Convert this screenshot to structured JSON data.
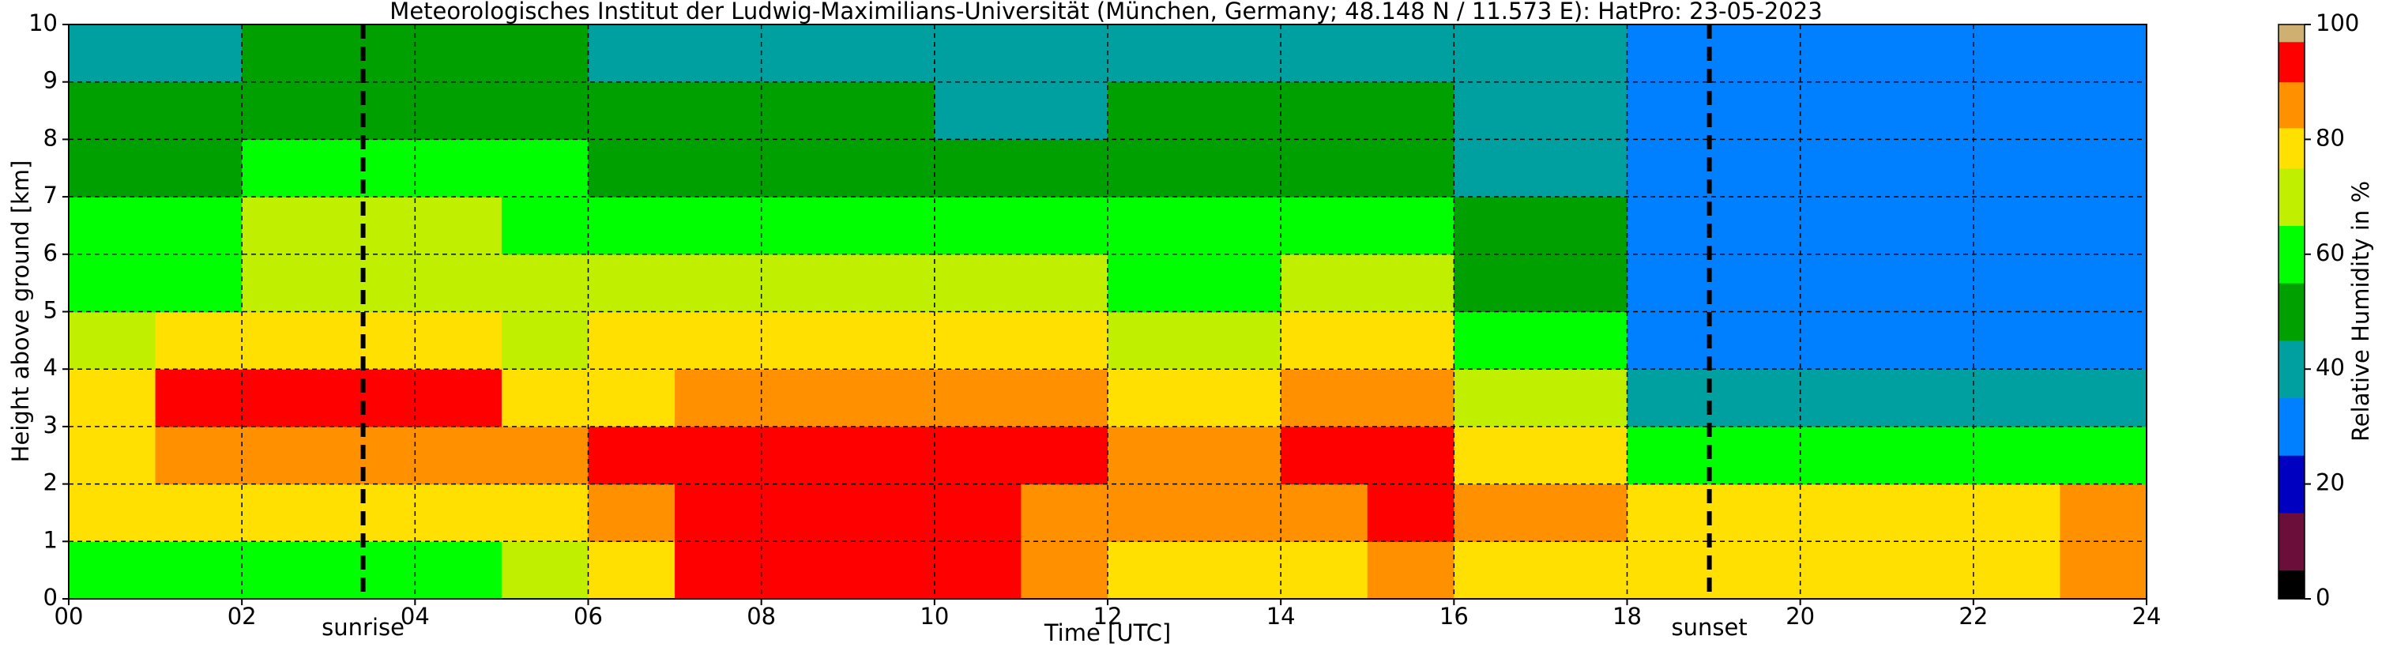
{
  "chart_data": {
    "type": "heatmap",
    "title": "Meteorologisches Institut der Ludwig-Maximilians-Universität (München, Germany; 48.148 N / 11.573 E):    HatPro: 23-05-2023",
    "xlabel": "Time [UTC]",
    "ylabel": "Height above ground [km]",
    "colorbar_label": "Relative Humidity in %",
    "x": [
      0.5,
      1.5,
      2.5,
      3.5,
      4.5,
      5.5,
      6.5,
      7.5,
      8.5,
      9.5,
      10.5,
      11.5,
      12.5,
      13.5,
      14.5,
      15.5,
      16.5,
      17.5,
      18.5,
      19.5,
      20.5,
      21.5,
      22.5,
      23.5
    ],
    "y": [
      0.5,
      1.5,
      2.5,
      3.5,
      4.5,
      5.5,
      6.5,
      7.5,
      8.5,
      9.5
    ],
    "z": [
      [
        55,
        57,
        58,
        58,
        60,
        70,
        75,
        92,
        92,
        92,
        92,
        85,
        80,
        80,
        80,
        82,
        80,
        78,
        78,
        78,
        78,
        78,
        80,
        88
      ],
      [
        78,
        78,
        80,
        80,
        80,
        80,
        85,
        93,
        93,
        93,
        93,
        88,
        88,
        88,
        88,
        92,
        82,
        82,
        80,
        80,
        80,
        80,
        80,
        85
      ],
      [
        80,
        88,
        88,
        88,
        88,
        85,
        93,
        93,
        93,
        93,
        93,
        90,
        88,
        85,
        92,
        92,
        80,
        80,
        62,
        62,
        62,
        62,
        62,
        62
      ],
      [
        75,
        90,
        90,
        90,
        90,
        80,
        80,
        88,
        88,
        88,
        88,
        85,
        75,
        75,
        85,
        85,
        72,
        72,
        40,
        40,
        40,
        40,
        40,
        40
      ],
      [
        68,
        78,
        78,
        78,
        78,
        72,
        75,
        75,
        75,
        75,
        78,
        78,
        68,
        68,
        75,
        75,
        55,
        55,
        28,
        28,
        28,
        28,
        28,
        28
      ],
      [
        62,
        62,
        72,
        72,
        72,
        65,
        65,
        65,
        65,
        65,
        70,
        70,
        60,
        60,
        65,
        65,
        48,
        48,
        28,
        28,
        28,
        28,
        28,
        28
      ],
      [
        55,
        55,
        65,
        65,
        65,
        58,
        57,
        57,
        57,
        57,
        62,
        62,
        55,
        55,
        58,
        58,
        45,
        45,
        28,
        28,
        28,
        28,
        28,
        28
      ],
      [
        50,
        50,
        55,
        55,
        55,
        55,
        50,
        50,
        50,
        50,
        52,
        52,
        50,
        50,
        50,
        50,
        42,
        42,
        28,
        28,
        28,
        28,
        28,
        28
      ],
      [
        45,
        45,
        50,
        50,
        50,
        50,
        47,
        47,
        47,
        47,
        40,
        40,
        48,
        48,
        48,
        48,
        40,
        40,
        28,
        28,
        28,
        28,
        28,
        28
      ],
      [
        40,
        40,
        47,
        47,
        47,
        47,
        42,
        42,
        42,
        42,
        38,
        38,
        40,
        40,
        40,
        40,
        38,
        38,
        25,
        25,
        25,
        25,
        25,
        25
      ]
    ],
    "xlim": [
      0,
      24
    ],
    "ylim": [
      0,
      10
    ],
    "xticks": [
      {
        "value": 0,
        "label": "00"
      },
      {
        "value": 2,
        "label": "02"
      },
      {
        "value": 4,
        "label": "04"
      },
      {
        "value": 6,
        "label": "06"
      },
      {
        "value": 8,
        "label": "08"
      },
      {
        "value": 10,
        "label": "10"
      },
      {
        "value": 12,
        "label": "12"
      },
      {
        "value": 14,
        "label": "14"
      },
      {
        "value": 16,
        "label": "16"
      },
      {
        "value": 18,
        "label": "18"
      },
      {
        "value": 20,
        "label": "20"
      },
      {
        "value": 22,
        "label": "22"
      },
      {
        "value": 24,
        "label": "24"
      }
    ],
    "yticks": [
      0,
      1,
      2,
      3,
      4,
      5,
      6,
      7,
      8,
      9,
      10
    ],
    "clim": [
      0,
      100
    ],
    "cticks": [
      0,
      20,
      40,
      60,
      80,
      100
    ],
    "colorscale": [
      [
        0,
        "#000000"
      ],
      [
        5,
        "#6b0f3a"
      ],
      [
        15,
        "#0000c0"
      ],
      [
        25,
        "#0080ff"
      ],
      [
        35,
        "#00a0a0"
      ],
      [
        45,
        "#00a000"
      ],
      [
        55,
        "#00ff00"
      ],
      [
        65,
        "#c0f000"
      ],
      [
        75,
        "#ffe000"
      ],
      [
        82,
        "#ff9000"
      ],
      [
        90,
        "#ff0000"
      ],
      [
        97,
        "#d0b070"
      ]
    ],
    "grid": true,
    "annotations": [
      {
        "text": "sunrise",
        "x": 3.4
      },
      {
        "text": "sunset",
        "x": 18.95
      }
    ]
  }
}
